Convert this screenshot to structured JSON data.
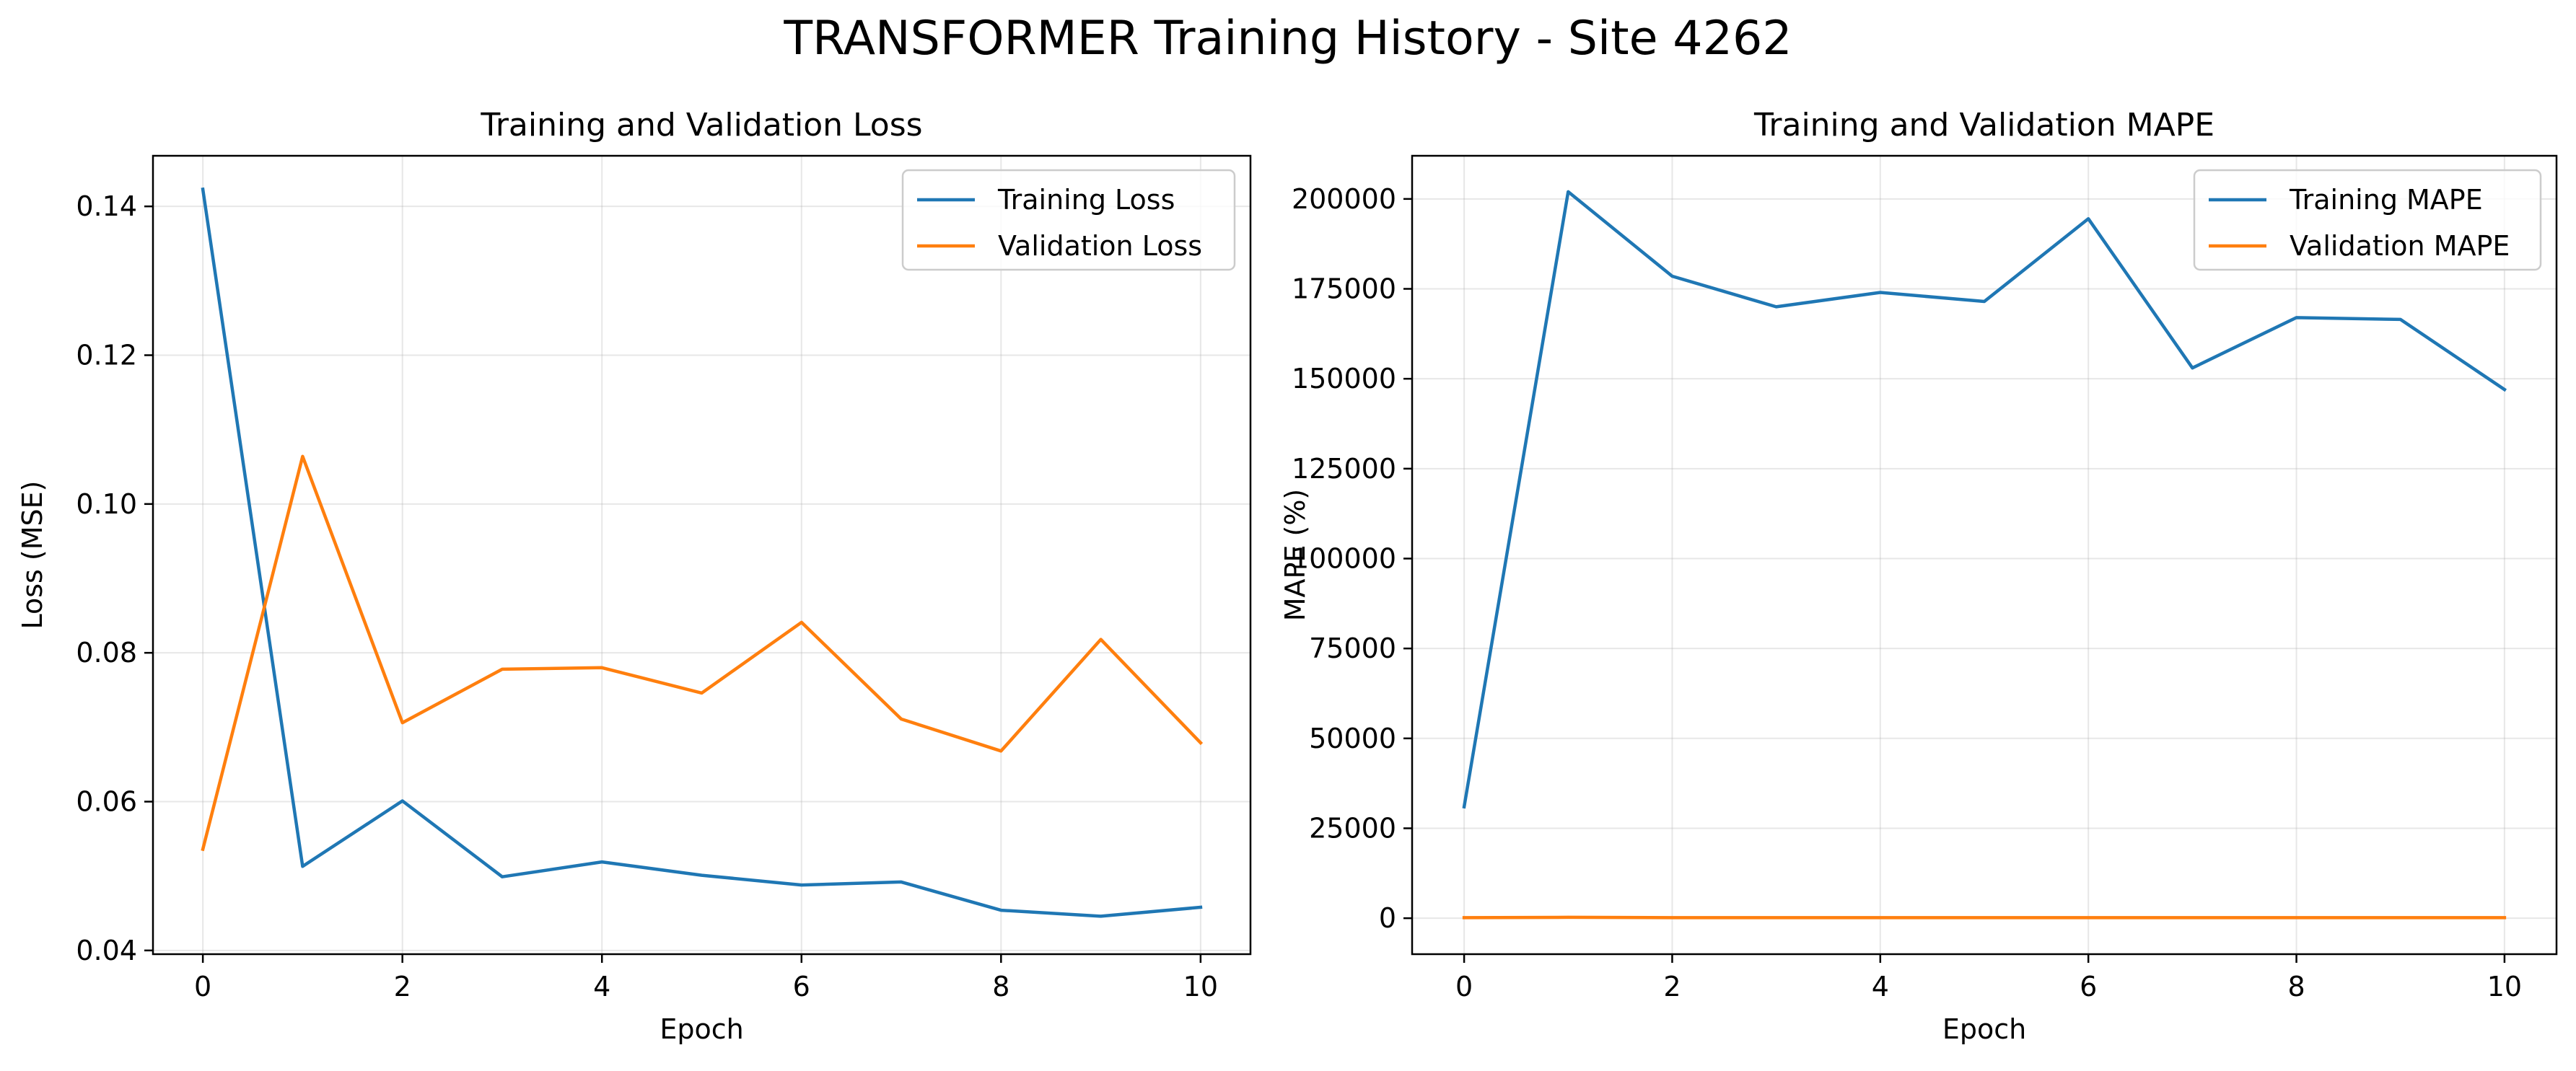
{
  "figure": {
    "suptitle": "TRANSFORMER Training History - Site 4262"
  },
  "chart_data": [
    {
      "type": "line",
      "title": "Training and Validation Loss",
      "xlabel": "Epoch",
      "ylabel": "Loss (MSE)",
      "x": [
        0,
        1,
        2,
        3,
        4,
        5,
        6,
        7,
        8,
        9,
        10
      ],
      "xlim": [
        -0.5,
        10.5
      ],
      "ylim": [
        0.0395,
        0.1468
      ],
      "xticks": [
        0,
        2,
        4,
        6,
        8,
        10
      ],
      "xtick_labels": [
        "0",
        "2",
        "4",
        "6",
        "8",
        "10"
      ],
      "yticks": [
        0.04,
        0.06,
        0.08,
        0.1,
        0.12,
        0.14
      ],
      "ytick_labels": [
        "0.04",
        "0.06",
        "0.08",
        "0.10",
        "0.12",
        "0.14"
      ],
      "grid": true,
      "legend_position": "upper right",
      "series": [
        {
          "name": "Training Loss",
          "color": "#1f77b4",
          "values": [
            0.1423,
            0.0513,
            0.0601,
            0.0499,
            0.0519,
            0.0501,
            0.0488,
            0.0492,
            0.0454,
            0.0446,
            0.0458
          ]
        },
        {
          "name": "Validation Loss",
          "color": "#ff7f0e",
          "values": [
            0.0536,
            0.1064,
            0.0706,
            0.0778,
            0.078,
            0.0746,
            0.0841,
            0.0711,
            0.0668,
            0.0818,
            0.0679
          ]
        }
      ]
    },
    {
      "type": "line",
      "title": "Training and Validation MAPE",
      "xlabel": "Epoch",
      "ylabel": "MAPE (%)",
      "x": [
        0,
        1,
        2,
        3,
        4,
        5,
        6,
        7,
        8,
        9,
        10
      ],
      "xlim": [
        -0.5,
        10.5
      ],
      "ylim": [
        -10000,
        212000
      ],
      "xticks": [
        0,
        2,
        4,
        6,
        8,
        10
      ],
      "xtick_labels": [
        "0",
        "2",
        "4",
        "6",
        "8",
        "10"
      ],
      "yticks": [
        0,
        25000,
        50000,
        75000,
        100000,
        125000,
        150000,
        175000,
        200000
      ],
      "ytick_labels": [
        "0",
        "25000",
        "50000",
        "75000",
        "100000",
        "125000",
        "150000",
        "175000",
        "200000"
      ],
      "grid": true,
      "legend_position": "upper right",
      "series": [
        {
          "name": "Training MAPE",
          "color": "#1f77b4",
          "values": [
            31000,
            202000,
            178500,
            170000,
            174000,
            171500,
            194500,
            153000,
            167000,
            166500,
            147000
          ]
        },
        {
          "name": "Validation MAPE",
          "color": "#ff7f0e",
          "values": [
            150,
            250,
            150,
            150,
            150,
            150,
            150,
            150,
            150,
            150,
            150
          ]
        }
      ]
    }
  ]
}
